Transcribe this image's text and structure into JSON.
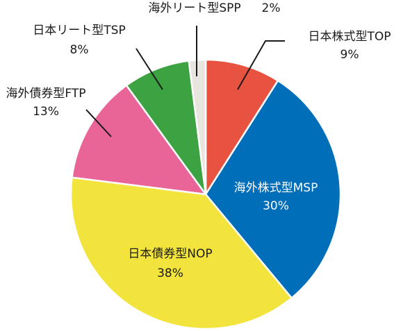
{
  "chart_data": {
    "type": "pie",
    "title": "",
    "start_angle_deg": 0,
    "direction": "clockwise",
    "slices": [
      {
        "name": "日本株式型TOP",
        "value": 9,
        "label": "9%",
        "color": "#E85240",
        "label_color": "#1a1a1a"
      },
      {
        "name": "海外株式型MSP",
        "value": 30,
        "label": "30%",
        "color": "#016EBA",
        "label_color": "#ffffff"
      },
      {
        "name": "日本債券型NOP",
        "value": 38,
        "label": "38%",
        "color": "#F2E43C",
        "label_color": "#1a1a1a"
      },
      {
        "name": "海外債券型FTP",
        "value": 13,
        "label": "13%",
        "color": "#E96597",
        "label_color": "#1a1a1a"
      },
      {
        "name": "日本リート型TSP",
        "value": 8,
        "label": "8%",
        "color": "#3DA242",
        "label_color": "#1a1a1a"
      },
      {
        "name": "海外リート型SPP",
        "value": 2,
        "label": "2%",
        "color": "#E8E5DF",
        "label_color": "#1a1a1a"
      }
    ],
    "slice_border_color": "#ffffff"
  }
}
